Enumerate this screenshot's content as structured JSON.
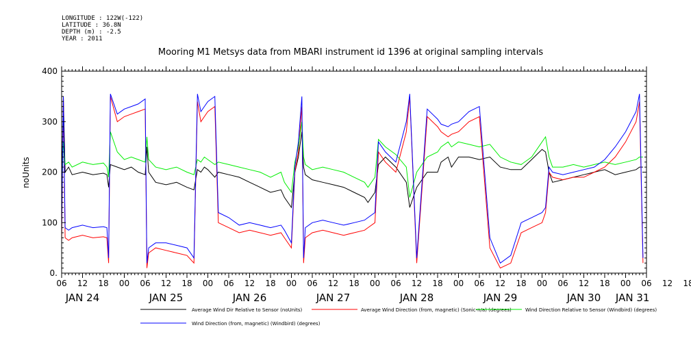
{
  "meta": {
    "longitude": "LONGITUDE : 122W(-122)",
    "latitude": "LATITUDE : 36.8N",
    "depth": "DEPTH (m) : -2.5",
    "year": "YEAR : 2011"
  },
  "chart_data": {
    "type": "line",
    "title": "Mooring M1 Metsys data from MBARI instrument id 1396 at original sampling intervals",
    "ylabel": "noUnits",
    "xlabel": "",
    "ylim": [
      0,
      400
    ],
    "yticks": [
      "0.",
      "100",
      "200",
      "300",
      "400"
    ],
    "xlim": [
      6,
      174
    ],
    "x_units": "hours from 00:00 JAN 24, 2011",
    "hour_ticks": [
      "06",
      "12",
      "18",
      "00",
      "06",
      "12",
      "18",
      "00",
      "06",
      "12",
      "18",
      "00",
      "06",
      "12",
      "18",
      "00",
      "06",
      "12",
      "18",
      "00",
      "06",
      "12",
      "18",
      "00",
      "06",
      "12",
      "18",
      "00",
      "06",
      "12",
      "18",
      "00",
      "06"
    ],
    "date_labels": [
      "JAN 24",
      "JAN 25",
      "JAN 26",
      "JAN 27",
      "JAN 28",
      "JAN 29",
      "JAN 30",
      "JAN 31"
    ],
    "grid": false,
    "legend_placement": "bottom",
    "series": [
      {
        "name": "Average Wind Dir Relative to Sensor (noUnits)",
        "color": "#000000",
        "x": [
          6,
          6.5,
          7,
          8,
          9,
          12,
          15,
          18,
          19,
          19.5,
          20,
          22,
          24,
          26,
          28,
          30,
          30.5,
          31,
          33,
          36,
          39,
          42,
          44,
          45,
          46,
          47,
          48,
          50,
          51,
          54,
          57,
          60,
          63,
          66,
          69,
          70,
          72,
          73,
          74,
          75,
          75.5,
          76,
          78,
          81,
          84,
          87,
          90,
          93,
          94,
          96,
          97,
          99,
          102,
          105,
          106,
          108,
          111,
          114,
          115,
          117,
          118,
          120,
          123,
          126,
          129,
          132,
          135,
          138,
          141,
          144,
          145,
          146,
          147,
          150,
          153,
          156,
          159,
          162,
          165,
          168,
          171,
          172,
          173
        ],
        "y": [
          160,
          350,
          200,
          210,
          195,
          200,
          195,
          198,
          195,
          170,
          215,
          210,
          205,
          210,
          200,
          195,
          250,
          200,
          180,
          175,
          180,
          170,
          165,
          205,
          200,
          210,
          205,
          190,
          200,
          195,
          190,
          180,
          170,
          160,
          165,
          150,
          130,
          200,
          230,
          280,
          210,
          195,
          185,
          180,
          175,
          170,
          160,
          150,
          140,
          160,
          215,
          230,
          210,
          180,
          130,
          170,
          200,
          200,
          220,
          230,
          210,
          230,
          230,
          225,
          230,
          210,
          205,
          205,
          225,
          245,
          240,
          200,
          180,
          185,
          190,
          195,
          200,
          205,
          195,
          200,
          205,
          210,
          210
        ]
      },
      {
        "name": "Average Wind Direction (from, magnetic) (Sonic-n/a) (degrees)",
        "color": "#ff0000",
        "x": [
          6,
          6.5,
          7,
          8,
          9,
          12,
          15,
          18,
          19,
          19.5,
          20,
          22,
          24,
          26,
          28,
          30,
          30.5,
          31,
          33,
          36,
          39,
          42,
          44,
          45,
          46,
          47,
          48,
          50,
          51,
          54,
          57,
          60,
          63,
          66,
          69,
          70,
          72,
          73,
          74,
          75,
          75.5,
          76,
          78,
          81,
          84,
          87,
          90,
          93,
          94,
          96,
          97,
          99,
          102,
          105,
          106,
          108,
          111,
          114,
          115,
          117,
          118,
          120,
          123,
          126,
          129,
          132,
          135,
          138,
          141,
          144,
          145,
          146,
          147,
          150,
          153,
          156,
          159,
          162,
          165,
          168,
          171,
          172,
          173
        ],
        "y": [
          60,
          350,
          70,
          65,
          70,
          75,
          70,
          72,
          70,
          20,
          350,
          300,
          310,
          315,
          320,
          325,
          10,
          40,
          50,
          45,
          40,
          35,
          20,
          340,
          300,
          310,
          320,
          330,
          100,
          90,
          80,
          85,
          80,
          75,
          80,
          70,
          50,
          200,
          240,
          330,
          20,
          70,
          80,
          85,
          80,
          75,
          80,
          85,
          90,
          100,
          240,
          220,
          200,
          280,
          350,
          20,
          310,
          290,
          280,
          270,
          275,
          280,
          300,
          310,
          50,
          10,
          20,
          80,
          90,
          100,
          120,
          200,
          190,
          185,
          190,
          190,
          200,
          210,
          230,
          260,
          300,
          340,
          20
        ]
      },
      {
        "name": "Wind Direction Relative to Sensor (Windbird) (degrees)",
        "color": "#00ee00",
        "x": [
          6,
          6.5,
          7,
          8,
          9,
          12,
          15,
          18,
          19,
          19.5,
          20,
          22,
          24,
          26,
          28,
          30,
          30.5,
          31,
          33,
          36,
          39,
          42,
          44,
          45,
          46,
          47,
          48,
          50,
          51,
          54,
          57,
          60,
          63,
          66,
          69,
          70,
          72,
          73,
          74,
          75,
          75.5,
          76,
          78,
          81,
          84,
          87,
          90,
          93,
          94,
          96,
          97,
          99,
          102,
          105,
          106,
          108,
          111,
          114,
          115,
          117,
          118,
          120,
          123,
          126,
          129,
          132,
          135,
          138,
          141,
          144,
          145,
          146,
          147,
          150,
          153,
          156,
          159,
          162,
          165,
          168,
          171,
          172,
          173
        ],
        "y": [
          150,
          260,
          215,
          220,
          210,
          220,
          215,
          218,
          210,
          190,
          280,
          240,
          225,
          230,
          225,
          220,
          270,
          225,
          210,
          205,
          210,
          200,
          195,
          225,
          220,
          230,
          225,
          215,
          220,
          215,
          210,
          205,
          200,
          190,
          200,
          180,
          160,
          220,
          250,
          300,
          230,
          215,
          205,
          210,
          205,
          200,
          190,
          180,
          170,
          190,
          265,
          250,
          235,
          210,
          150,
          200,
          230,
          240,
          250,
          260,
          250,
          260,
          255,
          250,
          255,
          230,
          220,
          215,
          230,
          260,
          270,
          230,
          210,
          210,
          215,
          210,
          215,
          220,
          215,
          220,
          225,
          230,
          230
        ]
      },
      {
        "name": "Wind Direction (from, magnetic) (Windbird) (degrees)",
        "color": "#0000ff",
        "x": [
          6,
          6.5,
          7,
          8,
          9,
          12,
          15,
          18,
          19,
          19.5,
          20,
          22,
          24,
          26,
          28,
          30,
          30.5,
          31,
          33,
          36,
          39,
          42,
          44,
          45,
          46,
          47,
          48,
          50,
          51,
          54,
          57,
          60,
          63,
          66,
          69,
          70,
          72,
          73,
          74,
          75,
          75.5,
          76,
          78,
          81,
          84,
          87,
          90,
          93,
          94,
          96,
          97,
          99,
          102,
          105,
          106,
          108,
          111,
          114,
          115,
          117,
          118,
          120,
          123,
          126,
          129,
          132,
          135,
          138,
          141,
          144,
          145,
          146,
          147,
          150,
          153,
          156,
          159,
          162,
          165,
          168,
          171,
          172,
          173
        ],
        "y": [
          80,
          350,
          90,
          85,
          90,
          95,
          90,
          92,
          90,
          30,
          355,
          315,
          325,
          330,
          335,
          345,
          20,
          50,
          60,
          60,
          55,
          50,
          30,
          355,
          320,
          330,
          340,
          350,
          120,
          110,
          95,
          100,
          95,
          90,
          95,
          85,
          60,
          210,
          260,
          350,
          30,
          90,
          100,
          105,
          100,
          95,
          100,
          105,
          110,
          120,
          260,
          240,
          220,
          300,
          355,
          30,
          325,
          305,
          295,
          290,
          295,
          300,
          320,
          330,
          70,
          20,
          35,
          100,
          110,
          120,
          130,
          210,
          200,
          195,
          200,
          205,
          210,
          225,
          250,
          280,
          320,
          355,
          30
        ]
      }
    ]
  }
}
